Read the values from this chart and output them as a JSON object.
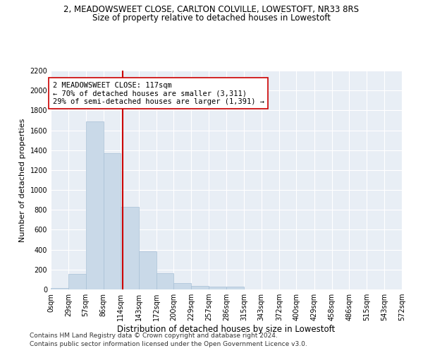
{
  "title1": "2, MEADOWSWEET CLOSE, CARLTON COLVILLE, LOWESTOFT, NR33 8RS",
  "title2": "Size of property relative to detached houses in Lowestoft",
  "xlabel": "Distribution of detached houses by size in Lowestoft",
  "ylabel": "Number of detached properties",
  "bar_color": "#c9d9e8",
  "bar_edge_color": "#a8c0d6",
  "background_color": "#e8eef5",
  "grid_color": "#ffffff",
  "fig_background": "#ffffff",
  "bin_edges": [
    0,
    29,
    57,
    86,
    114,
    143,
    172,
    200,
    229,
    257,
    286,
    315,
    343,
    372,
    400,
    429,
    458,
    486,
    515,
    543,
    572
  ],
  "bar_heights": [
    15,
    155,
    1690,
    1370,
    830,
    385,
    160,
    65,
    35,
    28,
    28,
    0,
    0,
    0,
    0,
    0,
    0,
    0,
    0,
    0
  ],
  "property_size": 117,
  "vline_color": "#cc0000",
  "annotation_line1": "2 MEADOWSWEET CLOSE: 117sqm",
  "annotation_line2": "← 70% of detached houses are smaller (3,311)",
  "annotation_line3": "29% of semi-detached houses are larger (1,391) →",
  "annotation_box_color": "#ffffff",
  "annotation_box_edge": "#cc0000",
  "ylim": [
    0,
    2200
  ],
  "yticks": [
    0,
    200,
    400,
    600,
    800,
    1000,
    1200,
    1400,
    1600,
    1800,
    2000,
    2200
  ],
  "tick_labels": [
    "0sqm",
    "29sqm",
    "57sqm",
    "86sqm",
    "114sqm",
    "143sqm",
    "172sqm",
    "200sqm",
    "229sqm",
    "257sqm",
    "286sqm",
    "315sqm",
    "343sqm",
    "372sqm",
    "400sqm",
    "429sqm",
    "458sqm",
    "486sqm",
    "515sqm",
    "543sqm",
    "572sqm"
  ],
  "footer_line1": "Contains HM Land Registry data © Crown copyright and database right 2024.",
  "footer_line2": "Contains public sector information licensed under the Open Government Licence v3.0.",
  "title1_fontsize": 8.5,
  "title2_fontsize": 8.5,
  "xlabel_fontsize": 8.5,
  "ylabel_fontsize": 8,
  "tick_fontsize": 7,
  "annotation_fontsize": 7.5,
  "footer_fontsize": 6.5
}
